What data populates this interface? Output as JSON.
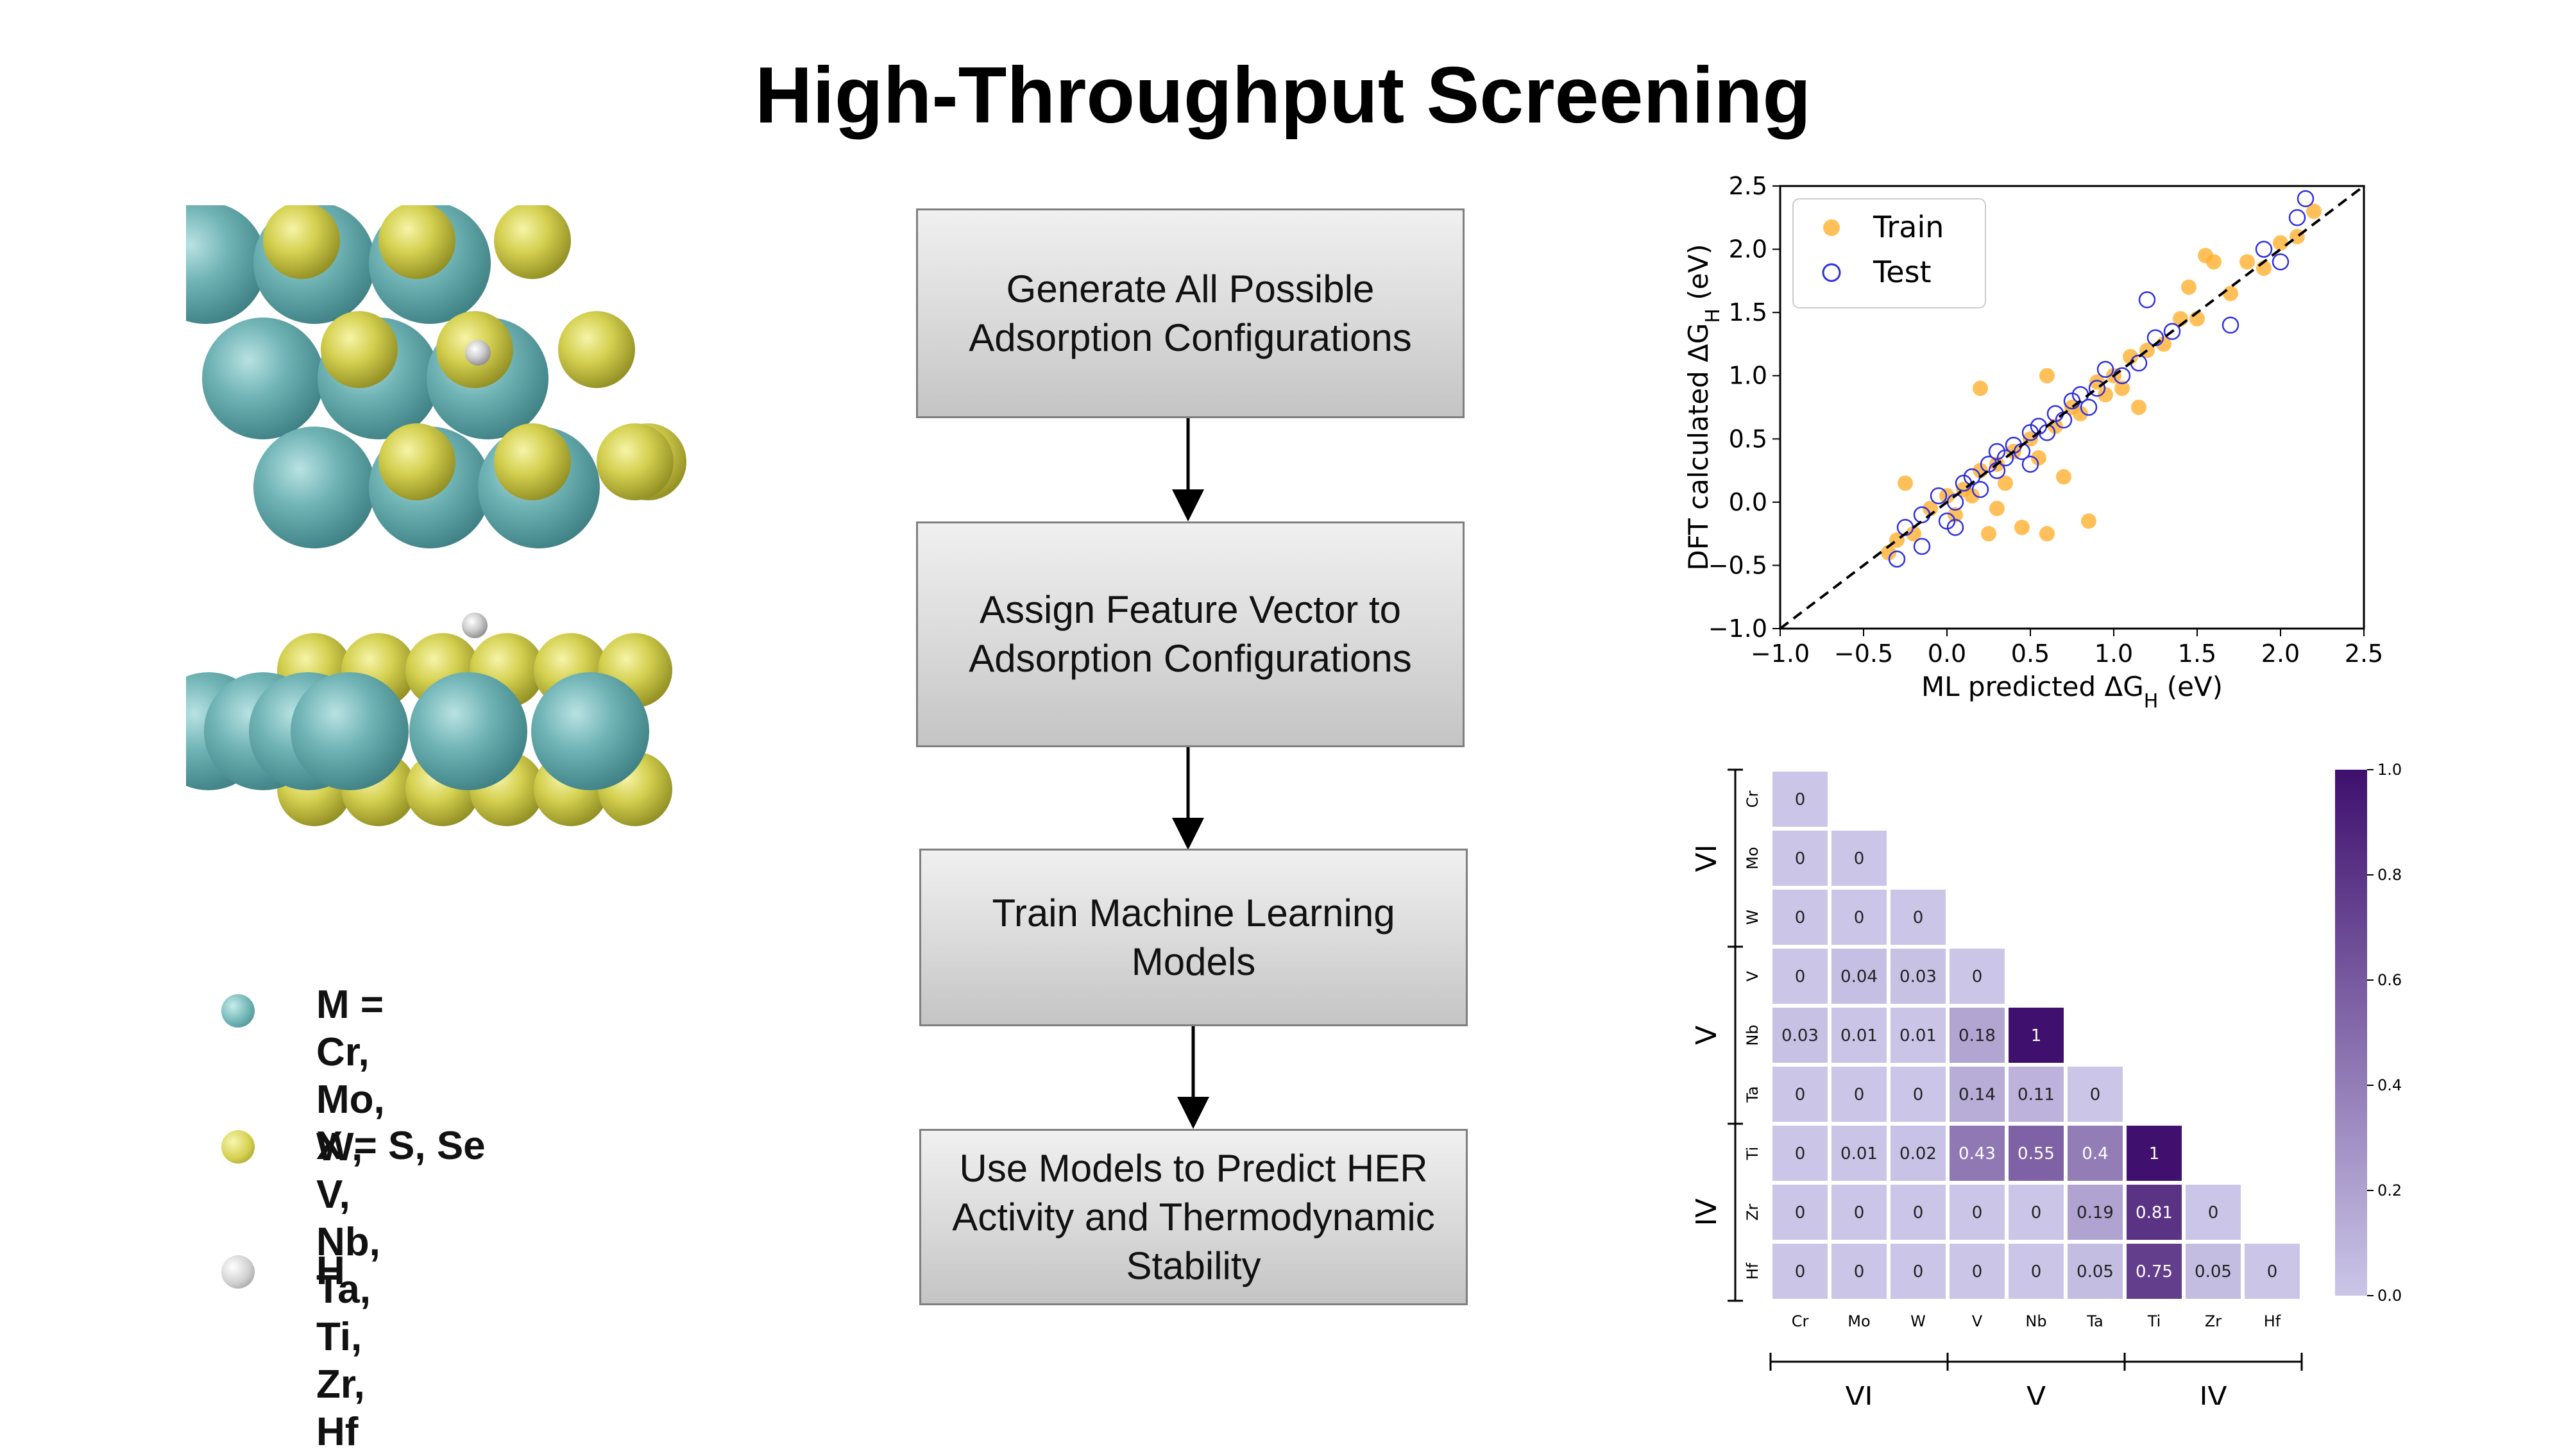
{
  "title": "High-Throughput Screening",
  "legend": [
    {
      "text": "M = Cr, Mo, W, V,\nNb, Ta, Ti, Zr, Hf",
      "color": "#6fb3b5"
    },
    {
      "text": "X = S, Se",
      "color": "#c9c64a"
    },
    {
      "text": "H",
      "color": "#c8c8c8"
    }
  ],
  "flow": [
    "Generate All Possible\nAdsorption Configurations",
    "Assign Feature Vector to\nAdsorption Configurations",
    "Train Machine Learning\nModels",
    "Use Models to Predict HER\nActivity and Thermodynamic\nStability"
  ],
  "colors": {
    "metal": "#6fb3b5",
    "chalcogen": "#cfcc50",
    "hydrogen": "#cfcfcf",
    "train": "#ffb030",
    "test": "#3030e0"
  },
  "chart_data": [
    {
      "type": "scatter",
      "xlabel": "ML predicted ΔG_H (eV)",
      "ylabel": "DFT calculated ΔG_H (eV)",
      "xlim": [
        -1.0,
        2.5
      ],
      "ylim": [
        -1.0,
        2.5
      ],
      "xticks": [
        "−1.0",
        "−0.5",
        "0.0",
        "0.5",
        "1.0",
        "1.5",
        "2.0",
        "2.5"
      ],
      "yticks": [
        "−1.0",
        "−0.5",
        "0.0",
        "0.5",
        "1.0",
        "1.5",
        "2.0",
        "2.5"
      ],
      "legend_placement": "top-left",
      "series": [
        {
          "name": "Train",
          "points": [
            [
              -0.35,
              -0.4
            ],
            [
              -0.3,
              -0.3
            ],
            [
              -0.2,
              -0.25
            ],
            [
              -0.1,
              -0.05
            ],
            [
              0.0,
              0.05
            ],
            [
              0.05,
              -0.1
            ],
            [
              0.1,
              0.1
            ],
            [
              0.15,
              0.05
            ],
            [
              0.2,
              0.25
            ],
            [
              0.25,
              -0.25
            ],
            [
              0.3,
              0.3
            ],
            [
              0.35,
              0.15
            ],
            [
              0.4,
              0.4
            ],
            [
              0.45,
              -0.2
            ],
            [
              0.5,
              0.5
            ],
            [
              0.55,
              0.35
            ],
            [
              0.6,
              -0.25
            ],
            [
              0.65,
              0.6
            ],
            [
              0.7,
              0.2
            ],
            [
              0.75,
              0.75
            ],
            [
              0.8,
              0.7
            ],
            [
              0.85,
              -0.15
            ],
            [
              0.9,
              0.95
            ],
            [
              1.0,
              1.0
            ],
            [
              1.05,
              0.9
            ],
            [
              1.1,
              1.15
            ],
            [
              1.15,
              0.75
            ],
            [
              1.2,
              1.2
            ],
            [
              1.3,
              1.25
            ],
            [
              1.4,
              1.45
            ],
            [
              1.45,
              1.7
            ],
            [
              1.5,
              1.45
            ],
            [
              1.6,
              1.9
            ],
            [
              1.7,
              1.65
            ],
            [
              1.8,
              1.9
            ],
            [
              1.9,
              1.85
            ],
            [
              2.0,
              2.05
            ],
            [
              2.1,
              2.1
            ],
            [
              2.2,
              2.3
            ],
            [
              0.2,
              0.9
            ],
            [
              0.6,
              1.0
            ],
            [
              -0.25,
              0.15
            ],
            [
              0.3,
              -0.05
            ],
            [
              0.95,
              0.85
            ],
            [
              1.55,
              1.95
            ]
          ]
        },
        {
          "name": "Test",
          "points": [
            [
              -0.3,
              -0.45
            ],
            [
              -0.25,
              -0.2
            ],
            [
              -0.15,
              -0.1
            ],
            [
              -0.05,
              0.05
            ],
            [
              0.0,
              -0.15
            ],
            [
              0.05,
              0.0
            ],
            [
              0.1,
              0.15
            ],
            [
              0.15,
              0.2
            ],
            [
              0.2,
              0.1
            ],
            [
              0.25,
              0.3
            ],
            [
              0.3,
              0.25
            ],
            [
              0.35,
              0.35
            ],
            [
              0.4,
              0.45
            ],
            [
              0.45,
              0.4
            ],
            [
              0.5,
              0.55
            ],
            [
              0.55,
              0.6
            ],
            [
              0.6,
              0.55
            ],
            [
              0.65,
              0.7
            ],
            [
              0.7,
              0.65
            ],
            [
              0.75,
              0.8
            ],
            [
              0.8,
              0.85
            ],
            [
              0.85,
              0.75
            ],
            [
              0.9,
              0.9
            ],
            [
              0.95,
              1.05
            ],
            [
              1.05,
              1.0
            ],
            [
              1.15,
              1.1
            ],
            [
              1.25,
              1.3
            ],
            [
              1.35,
              1.35
            ],
            [
              1.2,
              1.6
            ],
            [
              1.7,
              1.4
            ],
            [
              1.9,
              2.0
            ],
            [
              2.0,
              1.9
            ],
            [
              2.1,
              2.25
            ],
            [
              2.15,
              2.4
            ],
            [
              -0.15,
              -0.35
            ],
            [
              0.05,
              -0.2
            ],
            [
              0.3,
              0.4
            ],
            [
              0.5,
              0.3
            ]
          ]
        },
        {
          "name": "y=x",
          "points": [
            [
              -1.0,
              -1.0
            ],
            [
              2.5,
              2.5
            ]
          ]
        }
      ]
    },
    {
      "type": "heatmap",
      "labels": [
        "Cr",
        "Mo",
        "W",
        "V",
        "Nb",
        "Ta",
        "Ti",
        "Zr",
        "Hf"
      ],
      "groups": [
        {
          "name": "VI",
          "members": [
            "Cr",
            "Mo",
            "W"
          ]
        },
        {
          "name": "V",
          "members": [
            "V",
            "Nb",
            "Ta"
          ]
        },
        {
          "name": "IV",
          "members": [
            "Ti",
            "Zr",
            "Hf"
          ]
        }
      ],
      "rows": [
        [
          0
        ],
        [
          0,
          0
        ],
        [
          0,
          0,
          0
        ],
        [
          0,
          0.04,
          0.03,
          0
        ],
        [
          0.03,
          0.01,
          0.01,
          0.18,
          1
        ],
        [
          0,
          0,
          0,
          0.14,
          0.11,
          0
        ],
        [
          0,
          0.01,
          0.02,
          0.43,
          0.55,
          0.4,
          1
        ],
        [
          0,
          0,
          0,
          0,
          0,
          0.19,
          0.81,
          0
        ],
        [
          0,
          0,
          0,
          0,
          0,
          0.05,
          0.75,
          0.05,
          0
        ]
      ],
      "colorbar_ticks": [
        "0.0",
        "0.2",
        "0.4",
        "0.6",
        "0.8",
        "1.0"
      ],
      "colorbar_range": [
        0.0,
        1.0
      ]
    }
  ]
}
